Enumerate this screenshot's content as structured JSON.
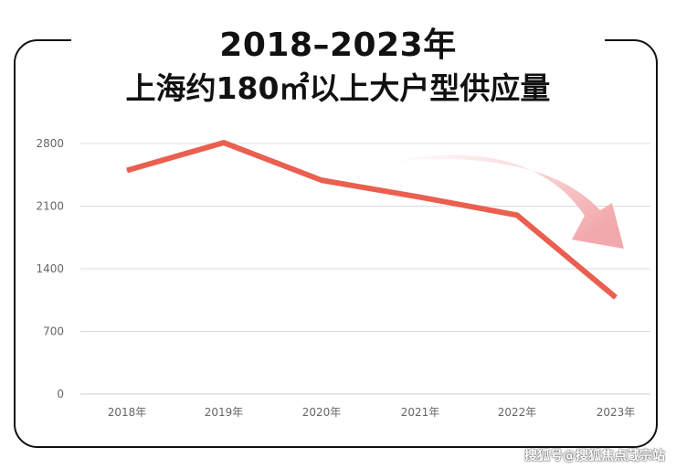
{
  "title_line1": "2018–2023年",
  "title_line2": "上海约180㎡以上大户型供应量",
  "watermark": "搜狐号@搜狐焦点蔵宗站",
  "chart_data": {
    "type": "line",
    "categories": [
      "2018年",
      "2019年",
      "2020年",
      "2021年",
      "2022年",
      "2023年"
    ],
    "series": [
      {
        "values": [
          2500,
          2810,
          2390,
          2200,
          2000,
          1080
        ],
        "color": "#ea5f4f"
      }
    ],
    "yticks": [
      0,
      700,
      1400,
      2100,
      2800
    ],
    "ylim": [
      0,
      2800
    ],
    "grid": true,
    "annotation": "curved-arrow-down",
    "arrow_color": "#f2a9ad"
  }
}
